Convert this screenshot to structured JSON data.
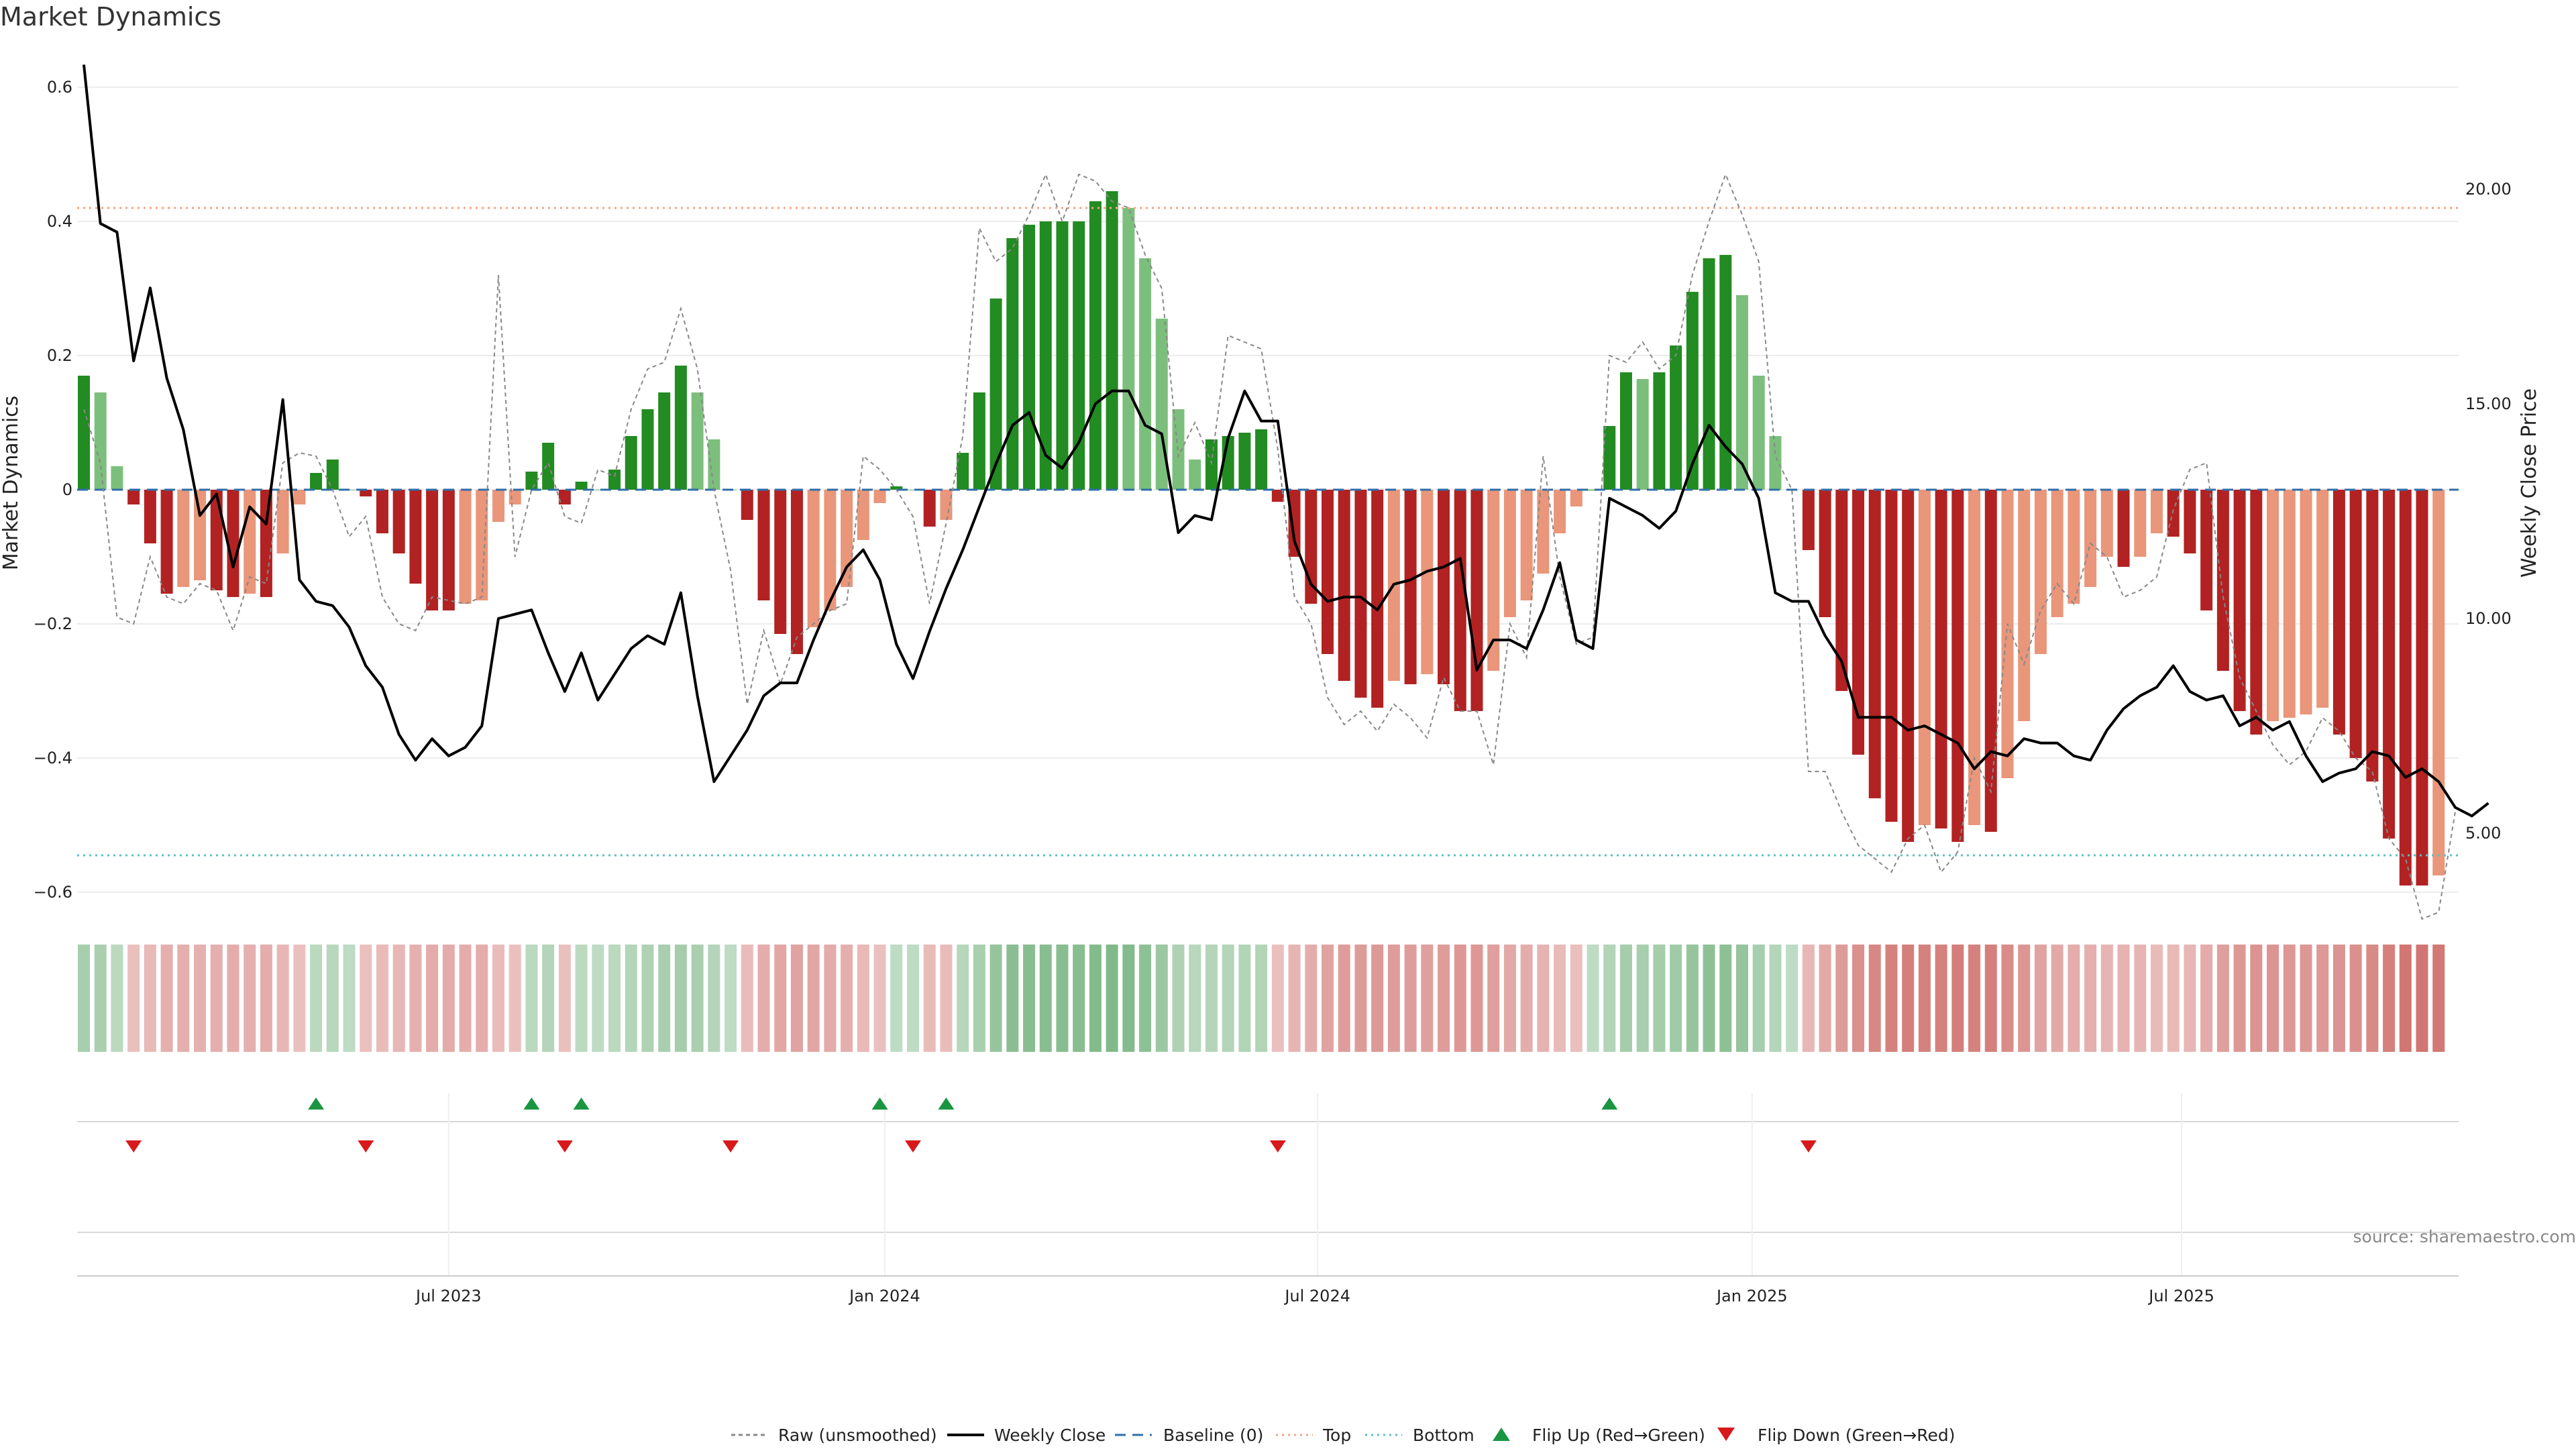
{
  "chart_data": {
    "type": "bar",
    "title": "Market Dynamics",
    "ylabel_left": "Market Dynamics",
    "ylabel_right": "Weekly Close Price",
    "ylim_left": [
      -0.64,
      0.64
    ],
    "yticks_left": [
      "0.6",
      "0.4",
      "0.2",
      "0",
      "−0.2",
      "−0.4",
      "−0.6"
    ],
    "ytick_values_left": [
      0.6,
      0.4,
      0.2,
      0,
      -0.2,
      -0.4,
      -0.6
    ],
    "ylim_right": [
      3.0,
      23.0
    ],
    "yticks_right": [
      "20.00",
      "15.00",
      "10.00",
      "5.00"
    ],
    "ytick_values_right": [
      20,
      15,
      10,
      5
    ],
    "x_ticks": [
      "Jul 2023",
      "Jan 2024",
      "Jul 2024",
      "Jan 2025",
      "Jul 2025"
    ],
    "x_tick_weeks": [
      22,
      48.3,
      74.4,
      100.6,
      126.5
    ],
    "levels": {
      "top": 0.42,
      "bottom": -0.545,
      "baseline": 0
    },
    "colors": {
      "dark_green": "#228b22",
      "light_green": "#7cbf7c",
      "dark_red": "#b22222",
      "light_red": "#e9967a",
      "close": "#000000",
      "raw": "#888888",
      "top_line": "#f4a582",
      "bottom_line": "#5bc0c7",
      "baseline": "#2f6fa8",
      "flip_up": "#1a9641",
      "flip_down": "#d7191c"
    },
    "weekly_change": [
      0.17,
      0.145,
      0.035,
      -0.022,
      -0.08,
      -0.155,
      -0.145,
      -0.135,
      -0.15,
      -0.16,
      -0.155,
      -0.16,
      -0.095,
      -0.022,
      0.025,
      0.045,
      0,
      -0.01,
      -0.065,
      -0.095,
      -0.14,
      -0.18,
      -0.18,
      -0.17,
      -0.165,
      -0.048,
      -0.022,
      0.027,
      0.07,
      -0.022,
      0.012,
      0,
      0.03,
      0.08,
      0.12,
      0.145,
      0.185,
      0.145,
      0.075,
      0,
      -0.045,
      -0.165,
      -0.215,
      -0.245,
      -0.205,
      -0.18,
      -0.145,
      -0.075,
      -0.02,
      0.005,
      0,
      -0.055,
      -0.045,
      0.055,
      0.145,
      0.285,
      0.375,
      0.395,
      0.4,
      0.4,
      0.4,
      0.43,
      0.445,
      0.42,
      0.345,
      0.255,
      0.12,
      0.045,
      0.075,
      0.08,
      0.085,
      0.09,
      -0.018,
      -0.1,
      -0.17,
      -0.245,
      -0.285,
      -0.31,
      -0.325,
      -0.285,
      -0.29,
      -0.275,
      -0.29,
      -0.33,
      -0.33,
      -0.27,
      -0.19,
      -0.165,
      -0.125,
      -0.065,
      -0.025,
      0,
      0.095,
      0.175,
      0.165,
      0.175,
      0.215,
      0.295,
      0.345,
      0.35,
      0.29,
      0.17,
      0.08,
      0,
      -0.09,
      -0.19,
      -0.3,
      -0.395,
      -0.46,
      -0.495,
      -0.525,
      -0.5,
      -0.505,
      -0.525,
      -0.5,
      -0.51,
      -0.43,
      -0.345,
      -0.245,
      -0.19,
      -0.17,
      -0.145,
      -0.1,
      -0.115,
      -0.1,
      -0.065,
      -0.07,
      -0.095,
      -0.18,
      -0.27,
      -0.33,
      -0.365,
      -0.345,
      -0.34,
      -0.335,
      -0.325,
      -0.365,
      -0.4,
      -0.435,
      -0.52,
      -0.59,
      -0.59,
      -0.575
    ],
    "weekly_close": [
      22.9,
      19.2,
      19.0,
      16.0,
      17.7,
      15.6,
      14.4,
      12.4,
      12.9,
      11.2,
      12.6,
      12.2,
      15.1,
      10.9,
      10.4,
      10.3,
      9.8,
      8.9,
      8.4,
      7.3,
      6.7,
      7.2,
      6.8,
      7.0,
      7.5,
      10.0,
      10.1,
      10.2,
      9.2,
      8.3,
      9.2,
      8.1,
      8.7,
      9.3,
      9.6,
      9.4,
      10.6,
      8.2,
      6.2,
      6.8,
      7.4,
      8.2,
      8.5,
      8.5,
      9.5,
      10.4,
      11.2,
      11.6,
      10.9,
      9.4,
      8.6,
      9.7,
      10.7,
      11.6,
      12.6,
      13.6,
      14.5,
      14.8,
      13.8,
      13.5,
      14.1,
      15.0,
      15.3,
      15.3,
      14.5,
      14.3,
      12.0,
      12.4,
      12.3,
      14.2,
      15.3,
      14.6,
      14.6,
      11.8,
      10.8,
      10.4,
      10.5,
      10.5,
      10.2,
      10.8,
      10.9,
      11.1,
      11.2,
      11.4,
      8.8,
      9.5,
      9.5,
      9.3,
      10.2,
      11.3,
      9.5,
      9.3,
      12.8,
      12.6,
      12.4,
      12.1,
      12.5,
      13.6,
      14.5,
      14.0,
      13.6,
      12.8,
      10.6,
      10.4,
      10.4,
      9.6,
      9.0,
      7.7,
      7.7,
      7.7,
      7.4,
      7.5,
      7.3,
      7.1,
      6.5,
      6.9,
      6.8,
      7.2,
      7.1,
      7.1,
      6.8,
      6.7,
      7.4,
      7.9,
      8.2,
      8.4,
      8.9,
      8.3,
      8.1,
      8.2,
      7.5,
      7.7,
      7.4,
      7.6,
      6.8,
      6.2,
      6.4,
      6.5,
      6.9,
      6.8,
      6.3,
      6.5,
      6.2,
      5.6,
      5.4,
      5.7
    ],
    "raw": [
      0.12,
      0.04,
      -0.19,
      -0.2,
      -0.1,
      -0.16,
      -0.17,
      -0.14,
      -0.15,
      -0.21,
      -0.13,
      -0.14,
      0.04,
      0.055,
      0.05,
      0.0,
      -0.07,
      -0.04,
      -0.16,
      -0.2,
      -0.21,
      -0.16,
      -0.165,
      -0.17,
      -0.16,
      0.32,
      -0.1,
      0.0,
      0.04,
      -0.04,
      -0.05,
      0.03,
      0.02,
      0.12,
      0.18,
      0.19,
      0.27,
      0.18,
      0.0,
      -0.12,
      -0.32,
      -0.21,
      -0.29,
      -0.22,
      -0.2,
      -0.18,
      -0.17,
      0.05,
      0.03,
      0.0,
      -0.04,
      -0.17,
      -0.05,
      0.08,
      0.39,
      0.34,
      0.36,
      0.41,
      0.47,
      0.4,
      0.47,
      0.46,
      0.43,
      0.42,
      0.35,
      0.3,
      0.05,
      0.1,
      0.04,
      0.23,
      0.22,
      0.21,
      0.06,
      -0.16,
      -0.2,
      -0.31,
      -0.35,
      -0.33,
      -0.36,
      -0.32,
      -0.34,
      -0.37,
      -0.28,
      -0.33,
      -0.33,
      -0.41,
      -0.2,
      -0.25,
      0.05,
      -0.13,
      -0.23,
      -0.22,
      0.2,
      0.19,
      0.22,
      0.18,
      0.2,
      0.32,
      0.4,
      0.47,
      0.41,
      0.34,
      0.05,
      0.0,
      -0.42,
      -0.42,
      -0.48,
      -0.53,
      -0.55,
      -0.57,
      -0.52,
      -0.5,
      -0.57,
      -0.54,
      -0.4,
      -0.45,
      -0.2,
      -0.26,
      -0.18,
      -0.14,
      -0.17,
      -0.08,
      -0.1,
      -0.16,
      -0.15,
      -0.13,
      -0.03,
      0.03,
      0.04,
      -0.16,
      -0.28,
      -0.33,
      -0.38,
      -0.41,
      -0.39,
      -0.34,
      -0.36,
      -0.4,
      -0.42,
      -0.52,
      -0.55,
      -0.64,
      -0.63,
      -0.48
    ],
    "background_strip": "week-by-week trend shading",
    "flip_up_weeks": [
      14,
      27,
      30,
      48,
      52,
      92
    ],
    "flip_down_weeks": [
      3,
      17,
      29,
      39,
      50,
      72,
      104
    ],
    "legend": {
      "raw": "Raw (unsmoothed)",
      "close": "Weekly Close",
      "baseline": "Baseline (0)",
      "top": "Top",
      "bottom": "Bottom",
      "flip_up": "Flip Up (Red→Green)",
      "flip_down": "Flip Down (Green→Red)"
    },
    "source": "source: sharemaestro.com"
  }
}
